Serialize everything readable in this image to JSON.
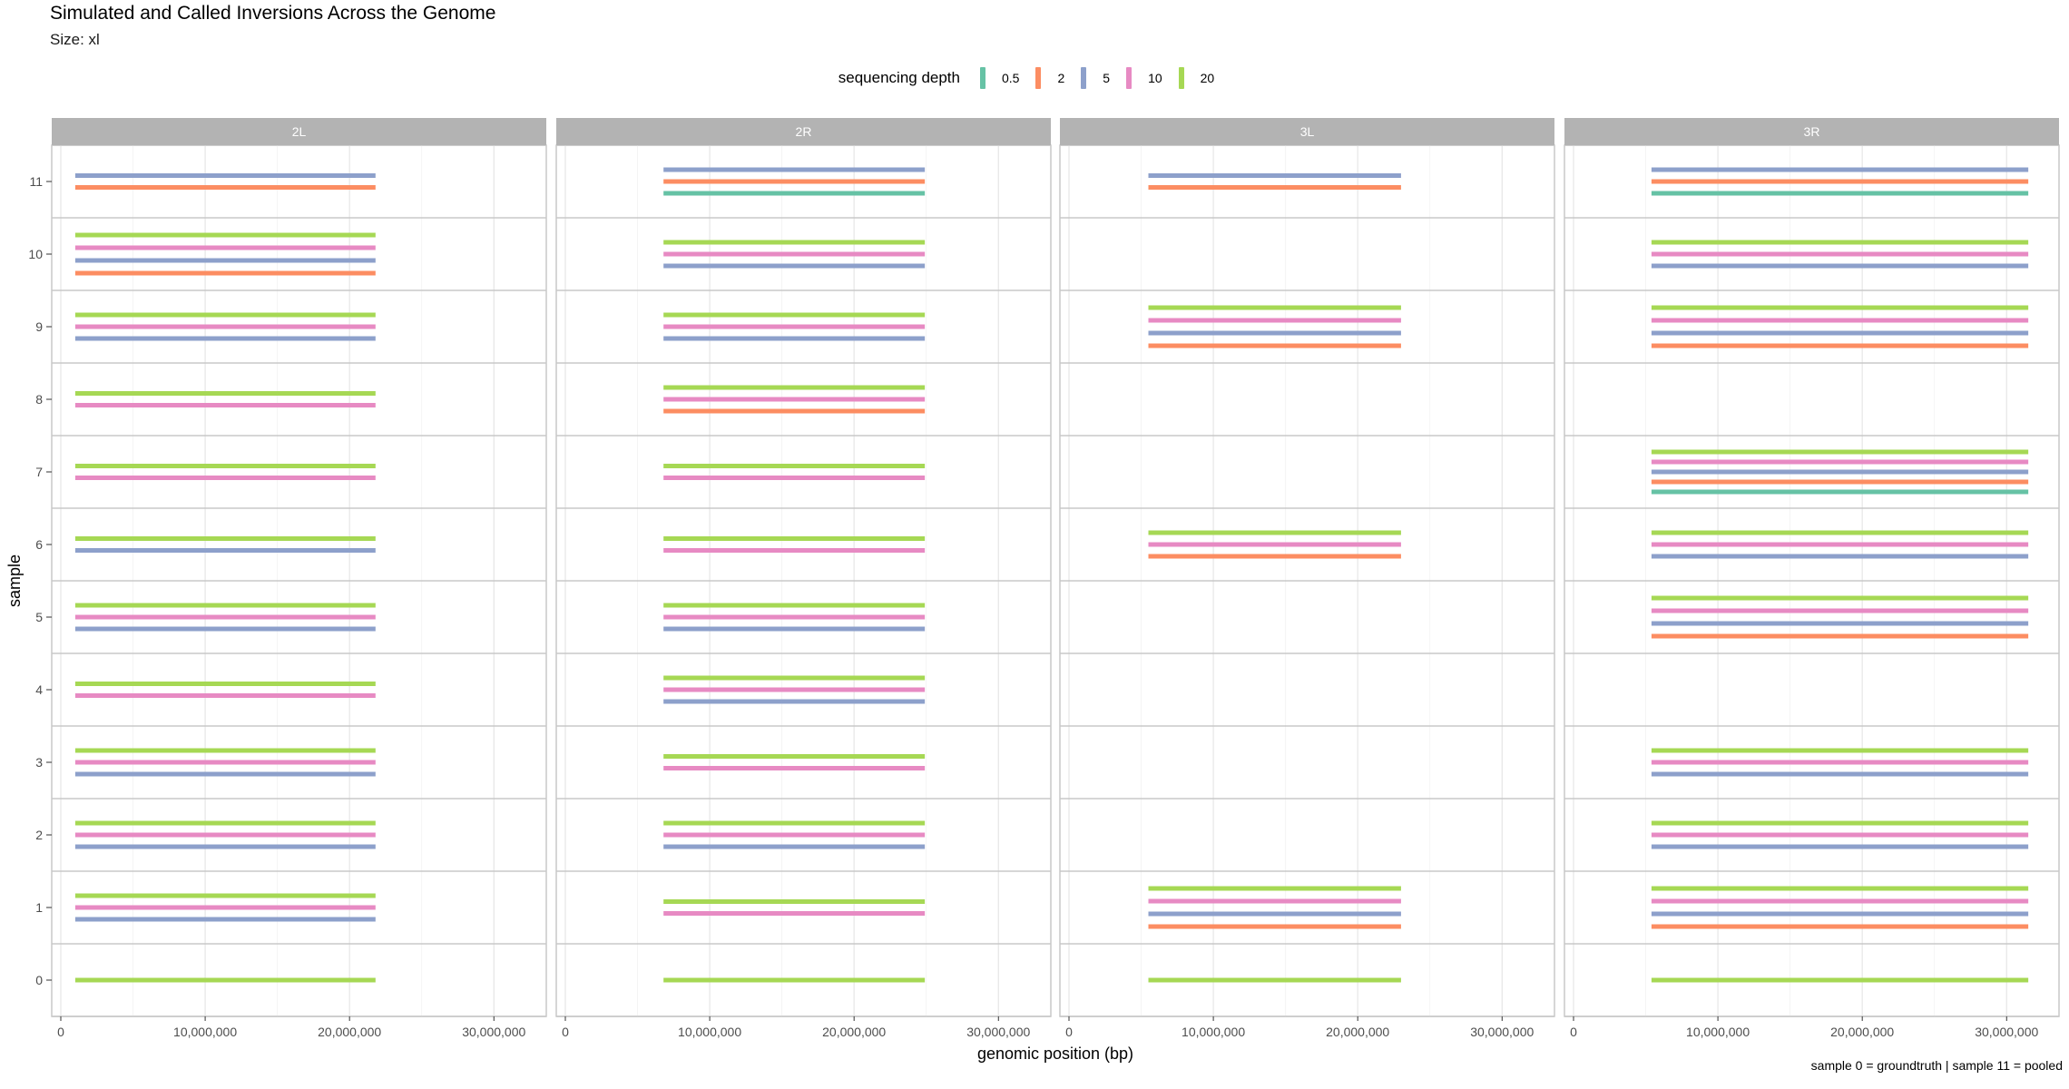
{
  "title": "Simulated and Called Inversions Across the Genome",
  "subtitle": "Size: xl",
  "caption": "sample 0 = groundtruth | sample 11 = pooled",
  "legend": {
    "title": "sequencing depth",
    "items": [
      {
        "label": "0.5",
        "color": "#66c2a5"
      },
      {
        "label": "2",
        "color": "#fc8d62"
      },
      {
        "label": "5",
        "color": "#8da0cb"
      },
      {
        "label": "10",
        "color": "#e78ac3"
      },
      {
        "label": "20",
        "color": "#a6d854"
      }
    ]
  },
  "chart_data": {
    "type": "segment",
    "xlabel": "genomic position (bp)",
    "ylabel": "sample",
    "xlim": [
      0,
      33000000
    ],
    "x_ticks": [
      0,
      10000000,
      20000000,
      30000000
    ],
    "x_tick_labels": [
      "0",
      "10,000,000",
      "20,000,000",
      "30,000,000"
    ],
    "samples": [
      "0",
      "1",
      "2",
      "3",
      "4",
      "5",
      "6",
      "7",
      "8",
      "9",
      "10",
      "11"
    ],
    "grid": true,
    "legend_position": "top",
    "facets": [
      {
        "name": "2L",
        "start": 1000000,
        "end": 21800000,
        "calls": {
          "0": [
            "20"
          ],
          "1": [
            "5",
            "10",
            "20"
          ],
          "2": [
            "5",
            "10",
            "20"
          ],
          "3": [
            "5",
            "10",
            "20"
          ],
          "4": [
            "10",
            "20"
          ],
          "5": [
            "5",
            "10",
            "20"
          ],
          "6": [
            "5",
            "20"
          ],
          "7": [
            "10",
            "20"
          ],
          "8": [
            "10",
            "20"
          ],
          "9": [
            "5",
            "10",
            "20"
          ],
          "10": [
            "2",
            "5",
            "10",
            "20"
          ],
          "11": [
            "2",
            "5"
          ]
        }
      },
      {
        "name": "2R",
        "start": 6800000,
        "end": 24900000,
        "calls": {
          "0": [
            "20"
          ],
          "1": [
            "10",
            "20"
          ],
          "2": [
            "5",
            "10",
            "20"
          ],
          "3": [
            "10",
            "20"
          ],
          "4": [
            "5",
            "10",
            "20"
          ],
          "5": [
            "5",
            "10",
            "20"
          ],
          "6": [
            "10",
            "20"
          ],
          "7": [
            "10",
            "20"
          ],
          "8": [
            "2",
            "10",
            "20"
          ],
          "9": [
            "5",
            "10",
            "20"
          ],
          "10": [
            "5",
            "10",
            "20"
          ],
          "11": [
            "0.5",
            "2",
            "5"
          ]
        }
      },
      {
        "name": "3L",
        "start": 5500000,
        "end": 23000000,
        "calls": {
          "0": [
            "20"
          ],
          "1": [
            "2",
            "5",
            "10",
            "20"
          ],
          "2": [],
          "3": [],
          "4": [],
          "5": [],
          "6": [
            "2",
            "10",
            "20"
          ],
          "7": [],
          "8": [],
          "9": [
            "2",
            "5",
            "10",
            "20"
          ],
          "10": [],
          "11": [
            "2",
            "5"
          ]
        }
      },
      {
        "name": "3R",
        "start": 5400000,
        "end": 31500000,
        "calls": {
          "0": [
            "20"
          ],
          "1": [
            "2",
            "5",
            "10",
            "20"
          ],
          "2": [
            "5",
            "10",
            "20"
          ],
          "3": [
            "5",
            "10",
            "20"
          ],
          "4": [],
          "5": [
            "2",
            "5",
            "10",
            "20"
          ],
          "6": [
            "5",
            "10",
            "20"
          ],
          "7": [
            "0.5",
            "2",
            "5",
            "10",
            "20"
          ],
          "8": [],
          "9": [
            "2",
            "5",
            "10",
            "20"
          ],
          "10": [
            "5",
            "10",
            "20"
          ],
          "11": [
            "0.5",
            "2",
            "5"
          ]
        }
      }
    ]
  }
}
